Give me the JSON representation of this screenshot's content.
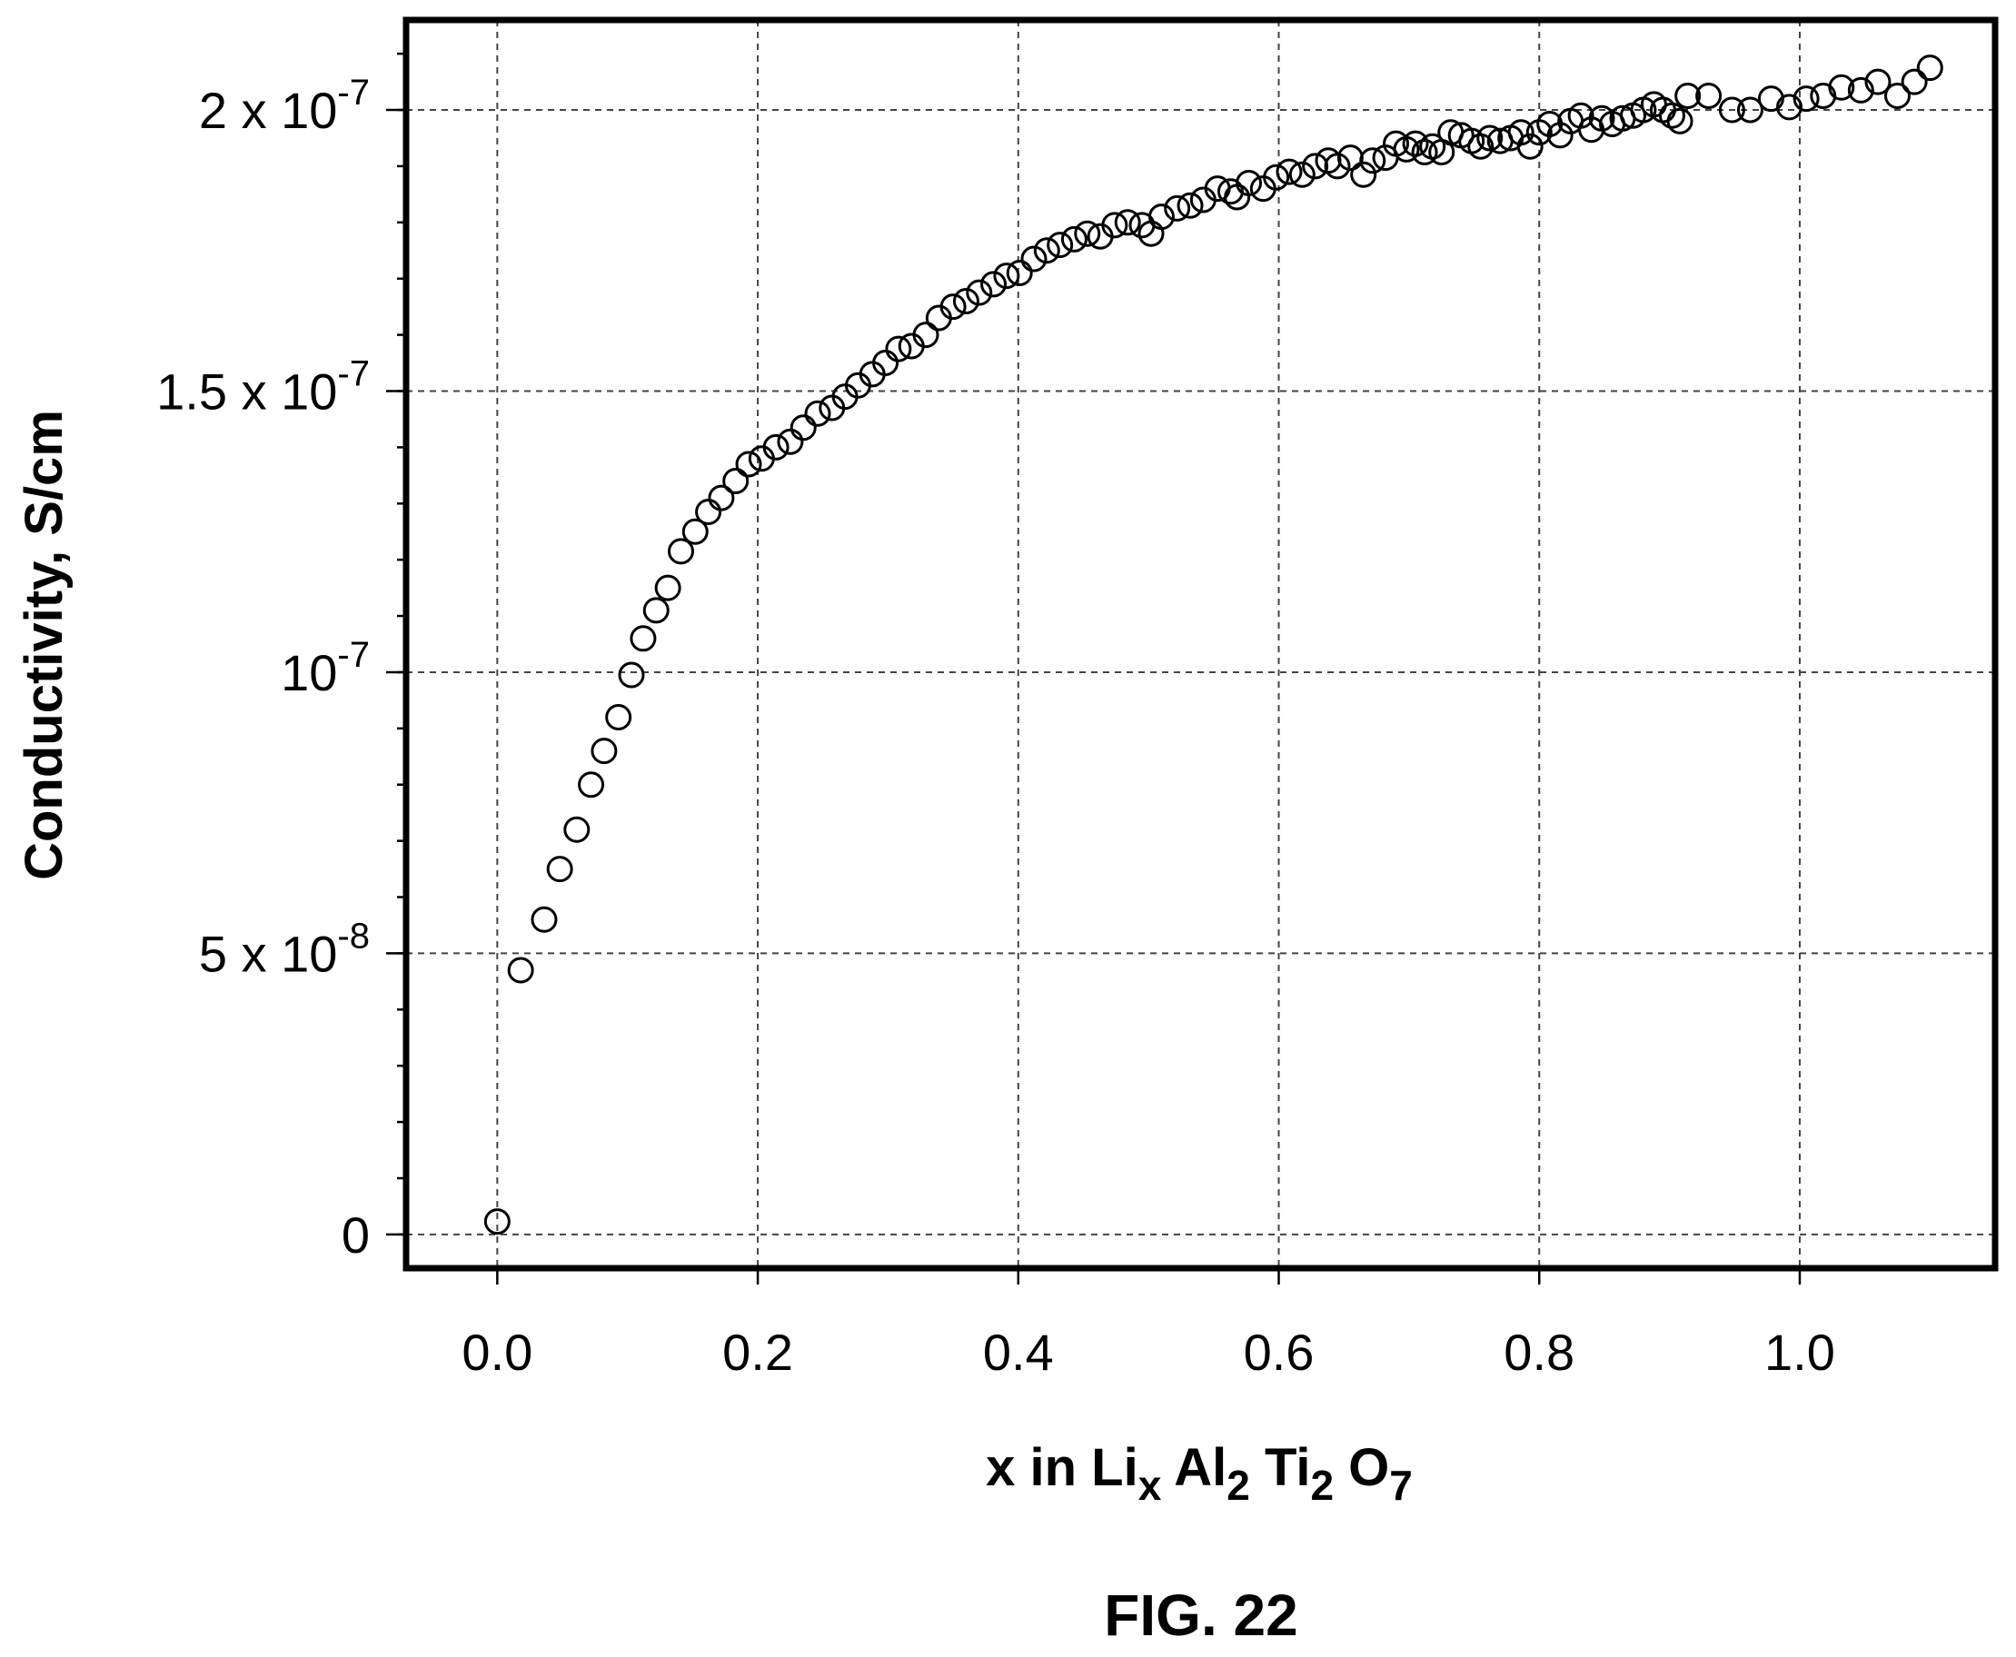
{
  "chart_data": {
    "type": "scatter",
    "title": "",
    "caption": "FIG. 22",
    "xlabel": {
      "prefix": "x in Li",
      "li_sub": "x",
      "al": " Al",
      "al_sub": "2",
      "ti": " Ti",
      "ti_sub": "2",
      "o": " O",
      "o_sub": "7"
    },
    "ylabel": "Conductivity, S/cm",
    "xlim": [
      -0.07,
      1.15
    ],
    "ylim": [
      -6e-09,
      2.16e-07
    ],
    "grid": true,
    "legend": "none",
    "xticks": [
      {
        "value": 0.0,
        "label": "0.0"
      },
      {
        "value": 0.2,
        "label": "0.2"
      },
      {
        "value": 0.4,
        "label": "0.4"
      },
      {
        "value": 0.6,
        "label": "0.6"
      },
      {
        "value": 0.8,
        "label": "0.8"
      },
      {
        "value": 1.0,
        "label": "1.0"
      }
    ],
    "yticks": [
      {
        "value": 0,
        "base": "0",
        "exp": ""
      },
      {
        "value": 5e-08,
        "base": "5 x 10",
        "exp": "-8"
      },
      {
        "value": 1e-07,
        "base": "10",
        "exp": "-7"
      },
      {
        "value": 1.5e-07,
        "base": "1.5 x 10",
        "exp": "-7"
      },
      {
        "value": 2e-07,
        "base": "2 x 10",
        "exp": "-7"
      }
    ],
    "yminor_step": 1e-08,
    "series": [
      {
        "marker": "open-circle",
        "color": "#000000",
        "points": [
          [
            0.0,
            2.3e-09
          ],
          [
            0.018,
            4.7e-08
          ],
          [
            0.036,
            5.6e-08
          ],
          [
            0.048,
            6.5e-08
          ],
          [
            0.061,
            7.2e-08
          ],
          [
            0.072,
            8e-08
          ],
          [
            0.082,
            8.6e-08
          ],
          [
            0.093,
            9.2e-08
          ],
          [
            0.103,
            9.95e-08
          ],
          [
            0.112,
            1.06e-07
          ],
          [
            0.122,
            1.11e-07
          ],
          [
            0.131,
            1.15e-07
          ],
          [
            0.141,
            1.215e-07
          ],
          [
            0.152,
            1.25e-07
          ],
          [
            0.162,
            1.285e-07
          ],
          [
            0.172,
            1.31e-07
          ],
          [
            0.183,
            1.34e-07
          ],
          [
            0.193,
            1.37e-07
          ],
          [
            0.203,
            1.38e-07
          ],
          [
            0.214,
            1.4e-07
          ],
          [
            0.225,
            1.41e-07
          ],
          [
            0.235,
            1.435e-07
          ],
          [
            0.246,
            1.46e-07
          ],
          [
            0.257,
            1.47e-07
          ],
          [
            0.267,
            1.49e-07
          ],
          [
            0.277,
            1.51e-07
          ],
          [
            0.288,
            1.53e-07
          ],
          [
            0.298,
            1.55e-07
          ],
          [
            0.308,
            1.575e-07
          ],
          [
            0.318,
            1.58e-07
          ],
          [
            0.329,
            1.6e-07
          ],
          [
            0.339,
            1.63e-07
          ],
          [
            0.35,
            1.65e-07
          ],
          [
            0.36,
            1.66e-07
          ],
          [
            0.37,
            1.675e-07
          ],
          [
            0.381,
            1.69e-07
          ],
          [
            0.391,
            1.705e-07
          ],
          [
            0.401,
            1.71e-07
          ],
          [
            0.412,
            1.735e-07
          ],
          [
            0.422,
            1.75e-07
          ],
          [
            0.432,
            1.76e-07
          ],
          [
            0.443,
            1.77e-07
          ],
          [
            0.453,
            1.78e-07
          ],
          [
            0.463,
            1.775e-07
          ],
          [
            0.474,
            1.795e-07
          ],
          [
            0.484,
            1.8e-07
          ],
          [
            0.495,
            1.795e-07
          ],
          [
            0.502,
            1.78e-07
          ],
          [
            0.51,
            1.81e-07
          ],
          [
            0.522,
            1.825e-07
          ],
          [
            0.532,
            1.83e-07
          ],
          [
            0.542,
            1.84e-07
          ],
          [
            0.553,
            1.86e-07
          ],
          [
            0.563,
            1.855e-07
          ],
          [
            0.568,
            1.845e-07
          ],
          [
            0.577,
            1.87e-07
          ],
          [
            0.588,
            1.86e-07
          ],
          [
            0.598,
            1.88e-07
          ],
          [
            0.608,
            1.89e-07
          ],
          [
            0.618,
            1.885e-07
          ],
          [
            0.628,
            1.9e-07
          ],
          [
            0.638,
            1.91e-07
          ],
          [
            0.645,
            1.9e-07
          ],
          [
            0.655,
            1.915e-07
          ],
          [
            0.665,
            1.885e-07
          ],
          [
            0.672,
            1.91e-07
          ],
          [
            0.682,
            1.915e-07
          ],
          [
            0.69,
            1.94e-07
          ],
          [
            0.698,
            1.93e-07
          ],
          [
            0.705,
            1.94e-07
          ],
          [
            0.712,
            1.925e-07
          ],
          [
            0.718,
            1.935e-07
          ],
          [
            0.725,
            1.925e-07
          ],
          [
            0.732,
            1.96e-07
          ],
          [
            0.74,
            1.955e-07
          ],
          [
            0.748,
            1.945e-07
          ],
          [
            0.755,
            1.935e-07
          ],
          [
            0.762,
            1.95e-07
          ],
          [
            0.77,
            1.945e-07
          ],
          [
            0.778,
            1.95e-07
          ],
          [
            0.786,
            1.96e-07
          ],
          [
            0.793,
            1.935e-07
          ],
          [
            0.8,
            1.96e-07
          ],
          [
            0.808,
            1.975e-07
          ],
          [
            0.816,
            1.955e-07
          ],
          [
            0.824,
            1.98e-07
          ],
          [
            0.832,
            1.99e-07
          ],
          [
            0.84,
            1.965e-07
          ],
          [
            0.848,
            1.985e-07
          ],
          [
            0.856,
            1.975e-07
          ],
          [
            0.864,
            1.985e-07
          ],
          [
            0.872,
            1.99e-07
          ],
          [
            0.88,
            2e-07
          ],
          [
            0.888,
            2.01e-07
          ],
          [
            0.895,
            2e-07
          ],
          [
            0.902,
            1.99e-07
          ],
          [
            0.908,
            1.98e-07
          ],
          [
            0.914,
            2.025e-07
          ],
          [
            0.93,
            2.025e-07
          ],
          [
            0.948,
            2e-07
          ],
          [
            0.962,
            2e-07
          ],
          [
            0.978,
            2.02e-07
          ],
          [
            0.992,
            2.005e-07
          ],
          [
            1.005,
            2.02e-07
          ],
          [
            1.018,
            2.025e-07
          ],
          [
            1.032,
            2.04e-07
          ],
          [
            1.047,
            2.035e-07
          ],
          [
            1.06,
            2.05e-07
          ],
          [
            1.075,
            2.025e-07
          ],
          [
            1.088,
            2.05e-07
          ],
          [
            1.1,
            2.075e-07
          ]
        ]
      }
    ]
  }
}
